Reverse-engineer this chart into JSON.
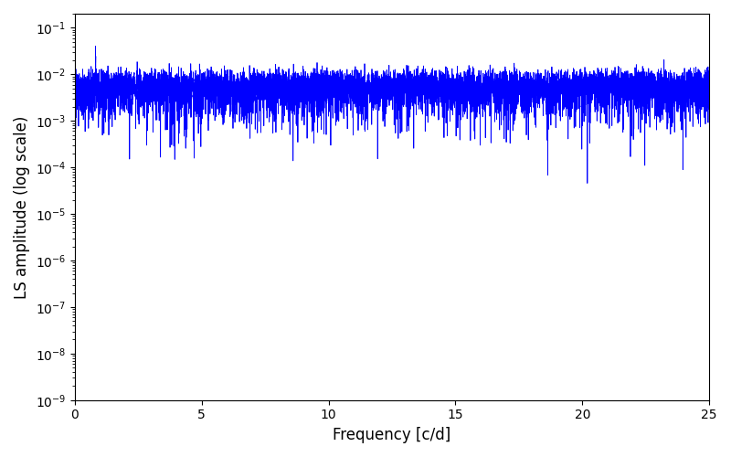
{
  "xlabel": "Frequency [c/d]",
  "ylabel": "LS amplitude (log scale)",
  "xlim": [
    0,
    25
  ],
  "ylim": [
    1e-09,
    0.2
  ],
  "line_color": "#0000ff",
  "line_width": 0.6,
  "background_color": "#ffffff",
  "figsize": [
    8.0,
    5.0
  ],
  "dpi": 100
}
